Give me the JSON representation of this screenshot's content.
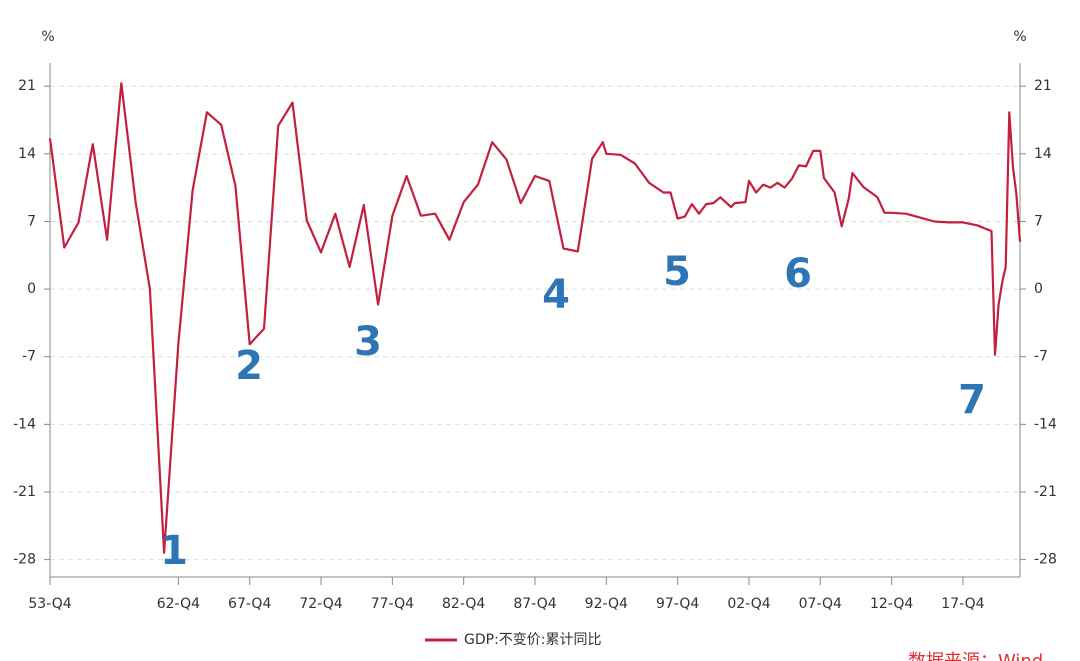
{
  "chart_data": {
    "type": "line",
    "y_unit": "%",
    "y2_unit": "%",
    "x": [
      1953.75,
      1954.75,
      1955.75,
      1956.75,
      1957.75,
      1958.75,
      1959.75,
      1960.75,
      1961.75,
      1962.75,
      1963.75,
      1964.75,
      1965.75,
      1966.75,
      1967.75,
      1968.75,
      1969.75,
      1970.75,
      1971.75,
      1972.75,
      1973.75,
      1974.75,
      1975.75,
      1976.75,
      1977.75,
      1978.75,
      1979.75,
      1980.75,
      1981.75,
      1982.75,
      1983.75,
      1984.75,
      1985.75,
      1986.75,
      1987.75,
      1988.75,
      1989.75,
      1990.75,
      1991.75,
      1992.5,
      1992.75,
      1993.75,
      1994.75,
      1995.75,
      1996.75,
      1997.25,
      1997.75,
      1998.25,
      1998.75,
      1999.25,
      1999.75,
      2000.25,
      2000.75,
      2001.5,
      2001.75,
      2002.5,
      2002.75,
      2003.25,
      2003.75,
      2004.25,
      2004.75,
      2005.25,
      2005.75,
      2006.25,
      2006.75,
      2007.25,
      2007.75,
      2008.0,
      2008.75,
      2009.25,
      2009.75,
      2010.0,
      2010.75,
      2011.75,
      2012.25,
      2012.75,
      2013.75,
      2014.75,
      2015.75,
      2016.75,
      2017.75,
      2018.75,
      2019.75,
      2020.0,
      2020.25,
      2020.5,
      2020.75,
      2021.0,
      2021.25,
      2021.5,
      2021.75
    ],
    "series": [
      {
        "name": "GDP:不变价:累计同比",
        "color": "#c41f3e",
        "values": [
          15.6,
          4.3,
          6.9,
          15,
          5.1,
          21.3,
          9,
          0,
          -27.3,
          -5.6,
          10.2,
          18.3,
          17,
          10.7,
          -5.7,
          -4.1,
          16.9,
          19.3,
          7.1,
          3.8,
          7.8,
          2.3,
          8.7,
          -1.6,
          7.6,
          11.7,
          7.6,
          7.8,
          5.1,
          9,
          10.8,
          15.2,
          13.4,
          8.9,
          11.7,
          11.2,
          4.2,
          3.9,
          13.5,
          15.2,
          14,
          13.9,
          13,
          11,
          10,
          10,
          7.3,
          7.5,
          8.8,
          7.8,
          8.8,
          8.9,
          9.5,
          8.5,
          8.9,
          9,
          11.2,
          10,
          10.8,
          10.5,
          11,
          10.5,
          11.4,
          12.8,
          12.7,
          14.3,
          14.3,
          11.5,
          10,
          6.5,
          9.4,
          12,
          10.6,
          9.5,
          7.9,
          7.9,
          7.8,
          7.4,
          7,
          6.9,
          6.9,
          6.6,
          6,
          -6.8,
          -1.6,
          0.7,
          2.3,
          18.3,
          12.7,
          9.8,
          4.9
        ]
      }
    ],
    "xlim": [
      1953.75,
      2021.75
    ],
    "xticks": [
      {
        "value": 1953.75,
        "label": "53-Q4"
      },
      {
        "value": 1962.75,
        "label": "62-Q4"
      },
      {
        "value": 1967.75,
        "label": "67-Q4"
      },
      {
        "value": 1972.75,
        "label": "72-Q4"
      },
      {
        "value": 1977.75,
        "label": "77-Q4"
      },
      {
        "value": 1982.75,
        "label": "82-Q4"
      },
      {
        "value": 1987.75,
        "label": "87-Q4"
      },
      {
        "value": 1992.75,
        "label": "92-Q4"
      },
      {
        "value": 1997.75,
        "label": "97-Q4"
      },
      {
        "value": 2002.75,
        "label": "02-Q4"
      },
      {
        "value": 2007.75,
        "label": "07-Q4"
      },
      {
        "value": 2012.75,
        "label": "12-Q4"
      },
      {
        "value": 2017.75,
        "label": "17-Q4"
      }
    ],
    "ylim": [
      -29.8,
      23.4
    ],
    "yticks": [
      21,
      14,
      7,
      0,
      -7,
      -14,
      -21,
      -28
    ],
    "y2lim": [
      -29.8,
      23.4
    ],
    "y2ticks": [
      21,
      14,
      7,
      0,
      -7,
      -14,
      -21,
      -28
    ],
    "grid": true,
    "legend": "bottom",
    "annotations": [
      "1",
      "2",
      "3",
      "4",
      "5",
      "6",
      "7"
    ],
    "source": "数据来源：Wind"
  }
}
